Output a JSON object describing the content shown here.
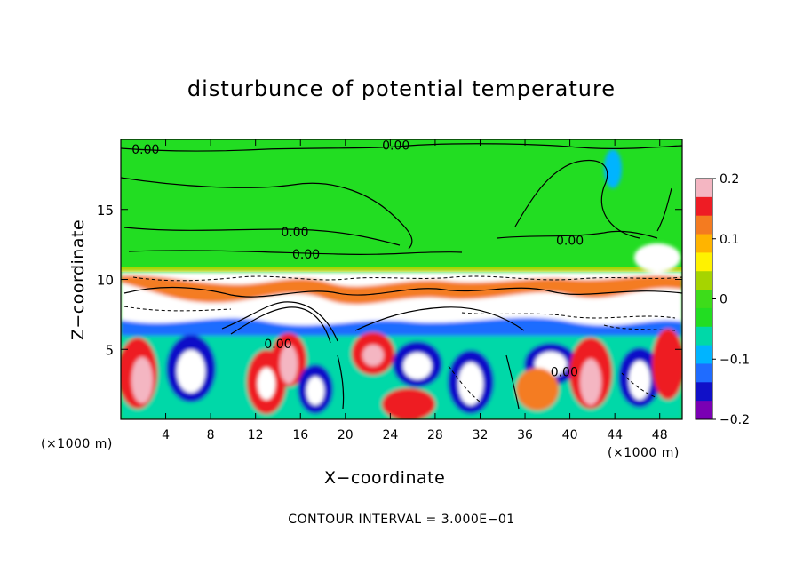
{
  "chart_data": {
    "type": "heatmap",
    "title": "disturbunce of potential temperature",
    "xlabel": "X−coordinate",
    "ylabel": "Z−coordinate",
    "x_unit": "(×1000 m)",
    "y_unit": "(×1000 m)",
    "xlim": [
      0,
      50
    ],
    "ylim": [
      0,
      20
    ],
    "x_ticks": [
      4,
      8,
      12,
      16,
      20,
      24,
      28,
      32,
      36,
      40,
      44,
      48
    ],
    "y_ticks": [
      5,
      10,
      15
    ],
    "colorbar": {
      "min": -0.2,
      "max": 0.2,
      "tick_values": [
        0.2,
        0.1,
        0,
        -0.1,
        -0.2
      ],
      "tick_labels": [
        "0.2",
        "0.1",
        "0",
        "−0.1",
        "−0.2"
      ],
      "colors": [
        "#f4b6c2",
        "#ee1c24",
        "#f47b20",
        "#ffb400",
        "#fff200",
        "#a6d400",
        "#3ddc1a",
        "#22dd22",
        "#00d8a8",
        "#00b4ff",
        "#1f6cff",
        "#1010c8",
        "#7a00b4"
      ]
    },
    "contour_labels": [
      {
        "text": "0.00",
        "x": 2.2,
        "z": 19.3
      },
      {
        "text": "0.00",
        "x": 24.5,
        "z": 19.6
      },
      {
        "text": "0.00",
        "x": 15.5,
        "z": 13.4
      },
      {
        "text": "0.00",
        "x": 40.0,
        "z": 12.8
      },
      {
        "text": "0.00",
        "x": 16.5,
        "z": 11.8
      },
      {
        "text": "0.00",
        "x": 14.0,
        "z": 5.4
      },
      {
        "text": "0.00",
        "x": 39.5,
        "z": 3.4
      }
    ],
    "contour_interval_text": "CONTOUR INTERVAL = 3.000E−01"
  }
}
